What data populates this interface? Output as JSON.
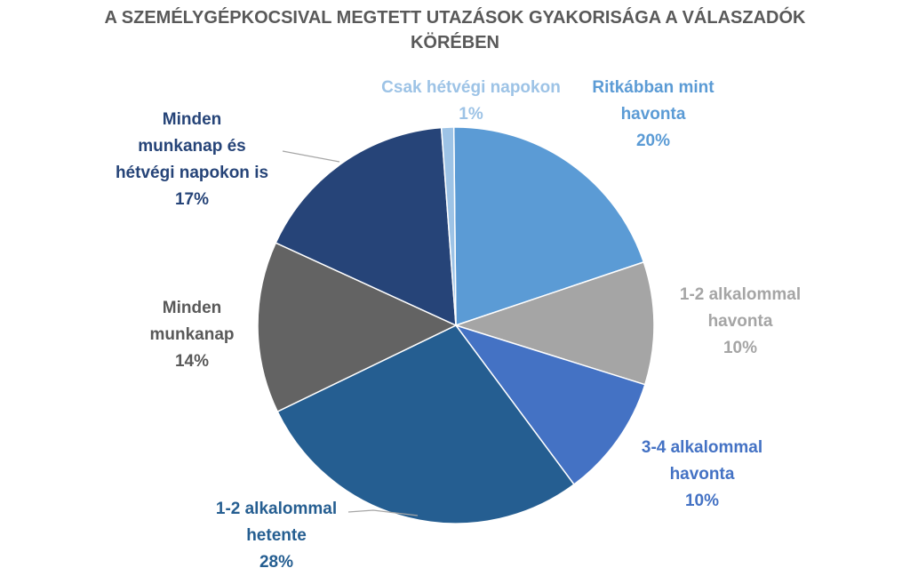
{
  "chart_data": {
    "type": "pie",
    "title_lines": [
      "A SZEMÉLYGÉPKOCSIVAL MEGTETT UTAZÁSOK GYAKORISÁGA A VÁLASZADÓK",
      "KÖRÉBEN"
    ],
    "slices": [
      {
        "label_lines": [
          "Ritkábban mint",
          "havonta"
        ],
        "value": 20,
        "pct_label": "20%",
        "color": "#5B9BD5"
      },
      {
        "label_lines": [
          "1-2 alkalommal",
          "havonta"
        ],
        "value": 10,
        "pct_label": "10%",
        "color": "#A5A5A5"
      },
      {
        "label_lines": [
          "3-4 alkalommal",
          "havonta"
        ],
        "value": 10,
        "pct_label": "10%",
        "color": "#4472C4"
      },
      {
        "label_lines": [
          "1-2 alkalommal",
          "hetente"
        ],
        "value": 28,
        "pct_label": "28%",
        "color": "#255E91"
      },
      {
        "label_lines": [
          "Minden",
          "munkanap"
        ],
        "value": 14,
        "pct_label": "14%",
        "color": "#636363"
      },
      {
        "label_lines": [
          "Minden",
          "munkanap és",
          "hétvégi napokon is"
        ],
        "value": 17,
        "pct_label": "17%",
        "color": "#264478"
      },
      {
        "label_lines": [
          "Csak hétvégi napokon"
        ],
        "value": 1,
        "pct_label": "1%",
        "color": "#9DC3E6"
      }
    ]
  }
}
